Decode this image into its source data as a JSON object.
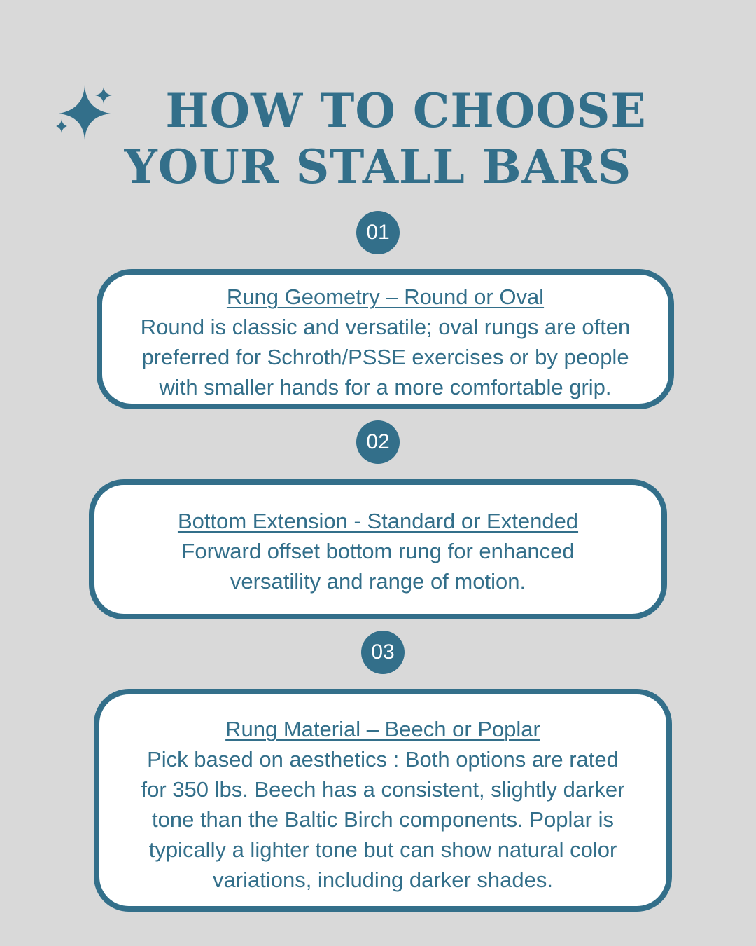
{
  "title": {
    "line1": "HOW TO CHOOSE",
    "line2": "YOUR STALL BARS"
  },
  "decor": {
    "icon": "sparkle-icon",
    "accent_color": "#336f8a",
    "background_color": "#d9d9d9"
  },
  "steps": [
    {
      "number": "01",
      "heading": "Rung Geometry – Round or Oval",
      "lines": [
        "Round is classic and versatile; oval rungs are often",
        "preferred for Schroth/PSSE exercises or by people",
        "with smaller hands for a more comfortable grip."
      ]
    },
    {
      "number": "02",
      "heading": "Bottom Extension - Standard or Extended",
      "lines": [
        "Forward offset bottom rung for enhanced",
        "versatility and range of motion."
      ]
    },
    {
      "number": "03",
      "heading": "Rung Material – Beech or Poplar",
      "lines": [
        "Pick based on aesthetics : Both options are rated",
        "for 350 lbs. Beech has a consistent, slightly darker",
        "tone than the Baltic Birch components. Poplar is",
        "typically a lighter tone but can show natural color",
        "variations, including darker shades."
      ]
    }
  ]
}
